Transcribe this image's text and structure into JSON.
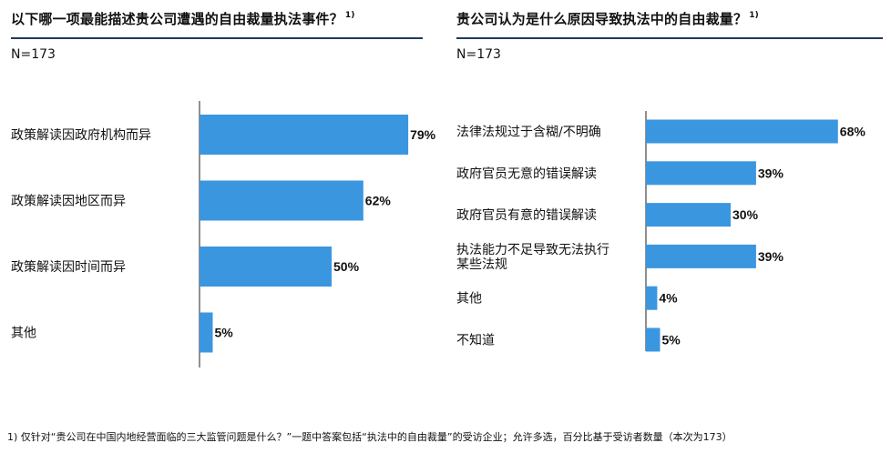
{
  "charts": {
    "left": {
      "title": "以下哪一项最能描述贵公司遭遇的自由裁量执法事件？",
      "title_note": "1)",
      "n_label": "N=173"
    },
    "right": {
      "title": "贵公司认为是什么原因导致执法中的自由裁量？",
      "title_note": "1)",
      "n_label": "N=173"
    }
  },
  "footnote": "1) 仅针对“贵公司在中国内地经营面临的三大监管问题是什么？”一题中答案包括“执法中的自由裁量”的受访企业；允许多选，百分比基于受访者数量（本次为173）",
  "colors": {
    "bar": "#3b96e0",
    "axis": "#222222",
    "rule": "#1f3a5f"
  },
  "chart_data": [
    {
      "type": "bar",
      "orientation": "horizontal",
      "title": "以下哪一项最能描述贵公司遭遇的自由裁量执法事件？",
      "categories": [
        "政策解读因政府机构而异",
        "政策解读因地区而异",
        "政策解读因时间而异",
        "其他"
      ],
      "values": [
        79,
        62,
        50,
        5
      ],
      "value_labels": [
        "79%",
        "62%",
        "50%",
        "5%"
      ],
      "xlim": [
        0,
        100
      ],
      "grid": false,
      "legend": "none"
    },
    {
      "type": "bar",
      "orientation": "horizontal",
      "title": "贵公司认为是什么原因导致执法中的自由裁量？",
      "categories": [
        "法律法规过于含糊/不明确",
        "政府官员无意的错误解读",
        "政府官员有意的错误解读",
        "执法能力不足导致无法执行某些法规",
        "其他",
        "不知道"
      ],
      "values": [
        68,
        39,
        30,
        39,
        4,
        5
      ],
      "value_labels": [
        "68%",
        "39%",
        "30%",
        "39%",
        "4%",
        "5%"
      ],
      "xlim": [
        0,
        100
      ],
      "grid": false,
      "legend": "none"
    }
  ]
}
